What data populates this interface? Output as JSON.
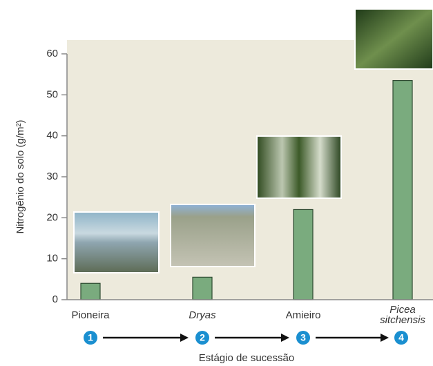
{
  "chart_data": {
    "type": "bar",
    "y_label": "Nitrogênio do solo (g/m²)",
    "x_label": "Estágio de sucessão",
    "categories": [
      "Pioneira",
      "Dryas",
      "Amieiro",
      "Picea sitchensis"
    ],
    "category_styles": [
      "normal",
      "italic",
      "normal",
      "italic"
    ],
    "stages": [
      1,
      2,
      3,
      4
    ],
    "values": [
      4,
      5.5,
      22,
      53.5
    ],
    "color": "#7aab7e",
    "ylim": [
      0,
      60
    ],
    "yticks": [
      0,
      10,
      20,
      30,
      40,
      50,
      60
    ]
  }
}
